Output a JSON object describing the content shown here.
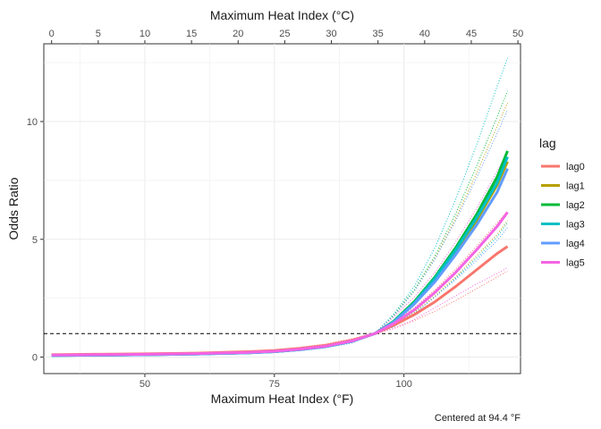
{
  "chart_data": {
    "type": "line",
    "x_label": "Maximum Heat Index (°F)",
    "x_top_label": "Maximum Heat Index (°C)",
    "y_label": "Odds Ratio",
    "caption": "Centered at 94.4 °F",
    "reference_line": 1,
    "xlim": [
      30.5,
      122.5
    ],
    "ylim": [
      -0.7,
      13.3
    ],
    "x_ticks": [
      50,
      75,
      100
    ],
    "y_ticks": [
      0,
      5,
      10
    ],
    "x_top_ticks": [
      0,
      5,
      10,
      15,
      20,
      25,
      30,
      35,
      40,
      45,
      50
    ],
    "grid": true,
    "legend": {
      "title": "lag",
      "position": "right",
      "entries": [
        "lag0",
        "lag1",
        "lag2",
        "lag3",
        "lag4",
        "lag5"
      ]
    },
    "x": [
      32,
      40,
      50,
      60,
      70,
      75,
      80,
      85,
      90,
      94.4,
      98,
      102,
      106,
      110,
      114,
      118,
      120
    ],
    "series": [
      {
        "name": "lag0",
        "color": "#F8766D",
        "values": [
          0.1,
          0.12,
          0.14,
          0.17,
          0.23,
          0.28,
          0.37,
          0.5,
          0.72,
          1.0,
          1.35,
          1.8,
          2.35,
          3.0,
          3.7,
          4.4,
          4.7
        ],
        "lower": [
          0.08,
          0.1,
          0.12,
          0.15,
          0.2,
          0.25,
          0.33,
          0.45,
          0.66,
          1.0,
          1.22,
          1.55,
          1.95,
          2.4,
          2.9,
          3.4,
          3.65
        ],
        "upper": [
          0.13,
          0.15,
          0.17,
          0.2,
          0.26,
          0.32,
          0.42,
          0.56,
          0.78,
          1.0,
          1.5,
          2.1,
          2.85,
          3.75,
          4.7,
          5.7,
          6.2
        ]
      },
      {
        "name": "lag1",
        "color": "#B79F00",
        "values": [
          0.08,
          0.09,
          0.11,
          0.14,
          0.19,
          0.24,
          0.33,
          0.46,
          0.68,
          1.0,
          1.5,
          2.3,
          3.3,
          4.5,
          5.8,
          7.3,
          8.3
        ],
        "lower": [
          0.06,
          0.07,
          0.09,
          0.12,
          0.17,
          0.21,
          0.29,
          0.41,
          0.62,
          1.0,
          1.3,
          1.9,
          2.6,
          3.4,
          4.3,
          5.2,
          5.8
        ],
        "upper": [
          0.1,
          0.12,
          0.14,
          0.17,
          0.22,
          0.28,
          0.38,
          0.52,
          0.75,
          1.0,
          1.75,
          2.8,
          4.2,
          5.9,
          7.8,
          9.8,
          10.8
        ]
      },
      {
        "name": "lag2",
        "color": "#00BA38",
        "values": [
          0.07,
          0.08,
          0.1,
          0.13,
          0.18,
          0.23,
          0.32,
          0.45,
          0.67,
          1.0,
          1.52,
          2.35,
          3.4,
          4.65,
          6.05,
          7.65,
          8.75
        ],
        "lower": [
          0.05,
          0.06,
          0.08,
          0.11,
          0.16,
          0.2,
          0.28,
          0.4,
          0.61,
          1.0,
          1.32,
          1.95,
          2.7,
          3.55,
          4.5,
          5.5,
          6.2
        ],
        "upper": [
          0.09,
          0.11,
          0.13,
          0.16,
          0.21,
          0.27,
          0.37,
          0.51,
          0.74,
          1.0,
          1.78,
          2.85,
          4.3,
          6.1,
          8.1,
          10.2,
          11.3
        ]
      },
      {
        "name": "lag3",
        "color": "#00BFC4",
        "values": [
          0.07,
          0.08,
          0.1,
          0.13,
          0.18,
          0.23,
          0.32,
          0.45,
          0.67,
          1.0,
          1.5,
          2.3,
          3.35,
          4.55,
          5.9,
          7.4,
          8.5
        ],
        "lower": [
          0.05,
          0.06,
          0.08,
          0.11,
          0.16,
          0.2,
          0.28,
          0.4,
          0.61,
          1.0,
          1.28,
          1.85,
          2.55,
          3.35,
          4.2,
          5.1,
          5.7
        ],
        "upper": [
          0.09,
          0.11,
          0.13,
          0.16,
          0.21,
          0.27,
          0.37,
          0.51,
          0.74,
          1.0,
          1.82,
          3.0,
          4.65,
          6.7,
          9.0,
          11.5,
          12.7
        ]
      },
      {
        "name": "lag4",
        "color": "#619CFF",
        "values": [
          0.07,
          0.08,
          0.1,
          0.13,
          0.18,
          0.23,
          0.32,
          0.45,
          0.67,
          1.0,
          1.48,
          2.25,
          3.2,
          4.35,
          5.6,
          7.0,
          8.0
        ],
        "lower": [
          0.05,
          0.06,
          0.08,
          0.11,
          0.16,
          0.2,
          0.28,
          0.4,
          0.61,
          1.0,
          1.28,
          1.85,
          2.55,
          3.3,
          4.1,
          4.95,
          5.5
        ],
        "upper": [
          0.09,
          0.11,
          0.13,
          0.16,
          0.21,
          0.27,
          0.37,
          0.51,
          0.74,
          1.0,
          1.72,
          2.8,
          4.15,
          5.8,
          7.6,
          9.5,
          10.5
        ]
      },
      {
        "name": "lag5",
        "color": "#F564E3",
        "values": [
          0.09,
          0.1,
          0.12,
          0.15,
          0.2,
          0.25,
          0.34,
          0.47,
          0.69,
          1.0,
          1.42,
          2.0,
          2.75,
          3.6,
          4.55,
          5.55,
          6.15
        ],
        "lower": [
          0.07,
          0.08,
          0.1,
          0.13,
          0.18,
          0.22,
          0.3,
          0.42,
          0.63,
          1.0,
          1.2,
          1.6,
          2.1,
          2.6,
          3.1,
          3.55,
          3.8
        ],
        "upper": [
          0.11,
          0.13,
          0.15,
          0.18,
          0.23,
          0.29,
          0.39,
          0.53,
          0.76,
          1.0,
          1.7,
          2.55,
          3.6,
          4.9,
          6.3,
          7.9,
          8.7
        ]
      }
    ]
  }
}
